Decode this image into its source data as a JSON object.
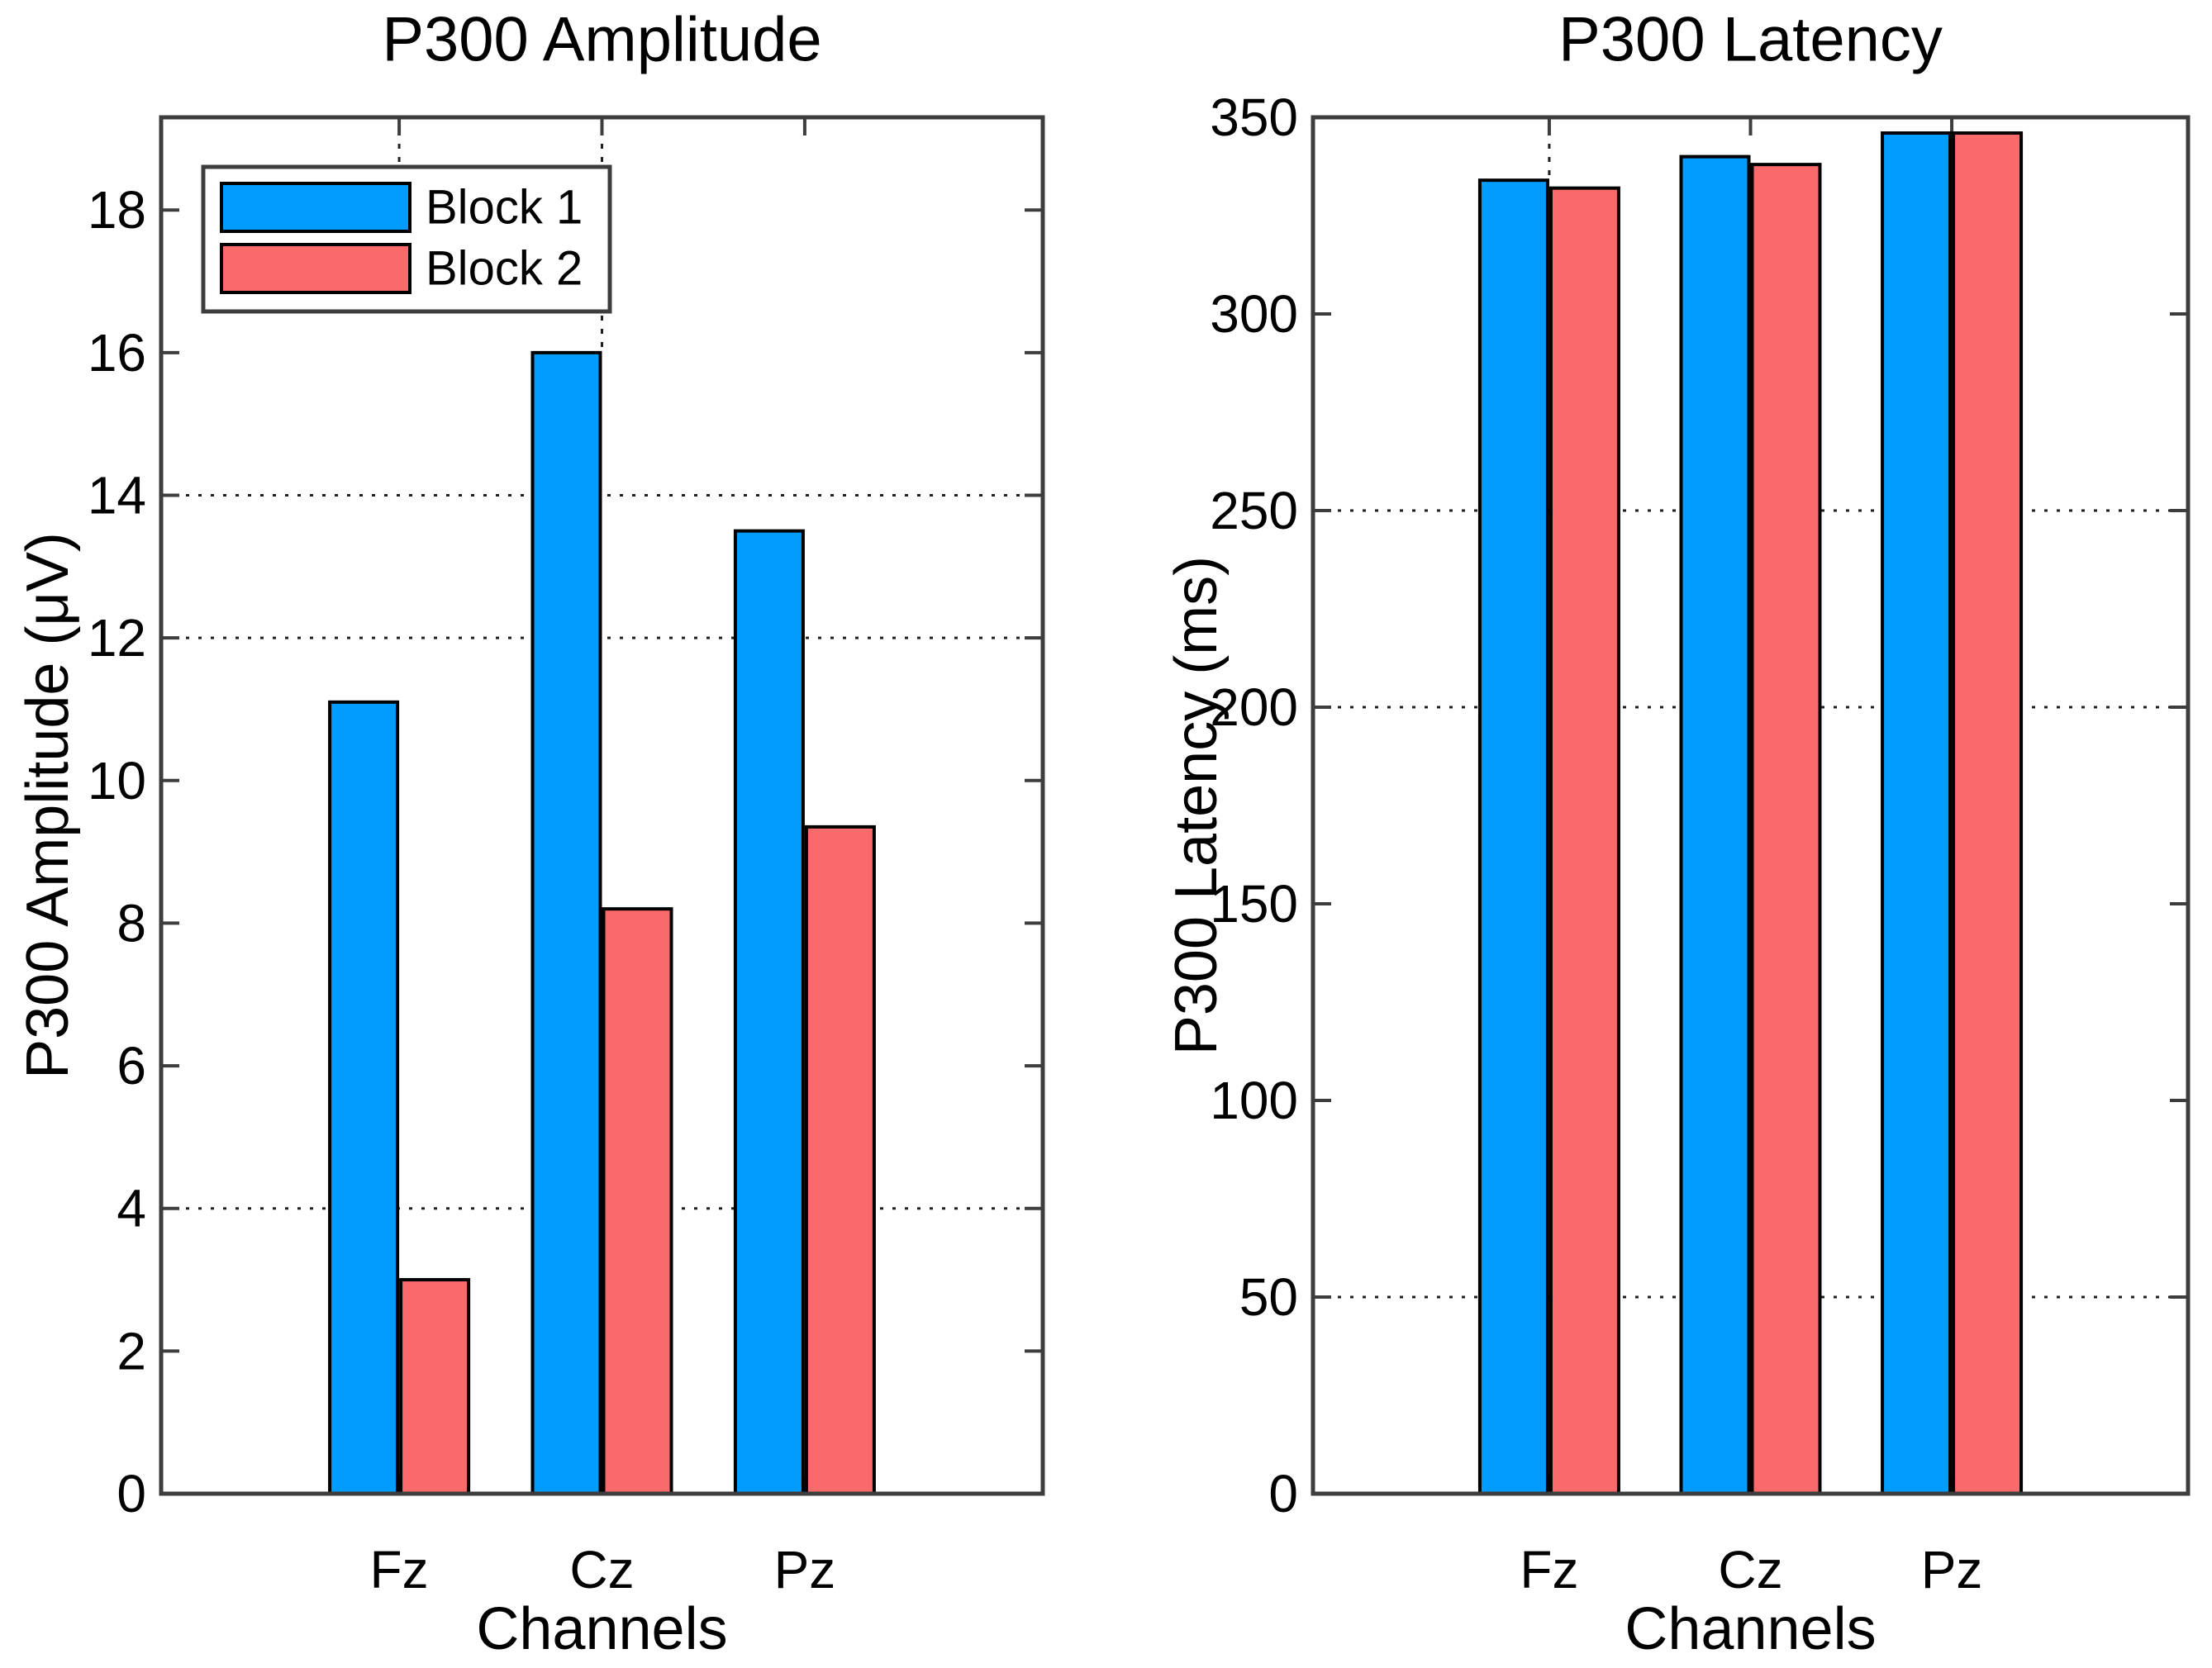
{
  "figure": {
    "background": "#ffffff",
    "kind": "matlab-style-dual-bar-figure"
  },
  "style": {
    "bar_edge_color": "#000000",
    "axis_color": "#3d3d3d",
    "grid_color": "#1f1f1f",
    "text_color": "#000000",
    "block1_color": "#009DFF",
    "block2_color": "#FB6A6A",
    "legend_background": "#ffffff"
  },
  "chart_data": [
    {
      "type": "bar",
      "title": "P300 Amplitude",
      "xlabel": "Channels",
      "ylabel": "P300 Amplitude (μV)",
      "categories": [
        "Fz",
        "Cz",
        "Pz"
      ],
      "series": [
        {
          "name": "Block 1",
          "color": "#009DFF",
          "values": [
            11.1,
            16.0,
            13.5
          ]
        },
        {
          "name": "Block 2",
          "color": "#FB6A6A",
          "values": [
            3.0,
            8.2,
            9.35
          ]
        }
      ],
      "ylim": [
        0,
        19.3
      ],
      "yticks": [
        0,
        2,
        4,
        6,
        8,
        10,
        12,
        14,
        16,
        18
      ],
      "grid": "dotted",
      "visible_h_gridlines": [
        4,
        12,
        14
      ],
      "visible_v_gridline_stubs": [
        "Fz",
        "Cz"
      ],
      "legend": {
        "visible": true,
        "position": "top-left",
        "entries": [
          "Block 1",
          "Block 2"
        ]
      }
    },
    {
      "type": "bar",
      "title": "P300 Latency",
      "xlabel": "Channels",
      "ylabel": "P300 Latency (ms)",
      "categories": [
        "Fz",
        "Cz",
        "Pz"
      ],
      "series": [
        {
          "name": "Block 1",
          "color": "#009DFF",
          "values": [
            334,
            340,
            346
          ]
        },
        {
          "name": "Block 2",
          "color": "#FB6A6A",
          "values": [
            332,
            338,
            346
          ]
        }
      ],
      "ylim": [
        0,
        350
      ],
      "yticks": [
        0,
        50,
        100,
        150,
        200,
        250,
        300,
        350
      ],
      "grid": "dotted",
      "visible_h_gridlines": [
        50,
        200,
        250
      ],
      "visible_v_gridline_stubs": [
        "Fz"
      ],
      "legend": {
        "visible": false,
        "entries": []
      }
    }
  ]
}
